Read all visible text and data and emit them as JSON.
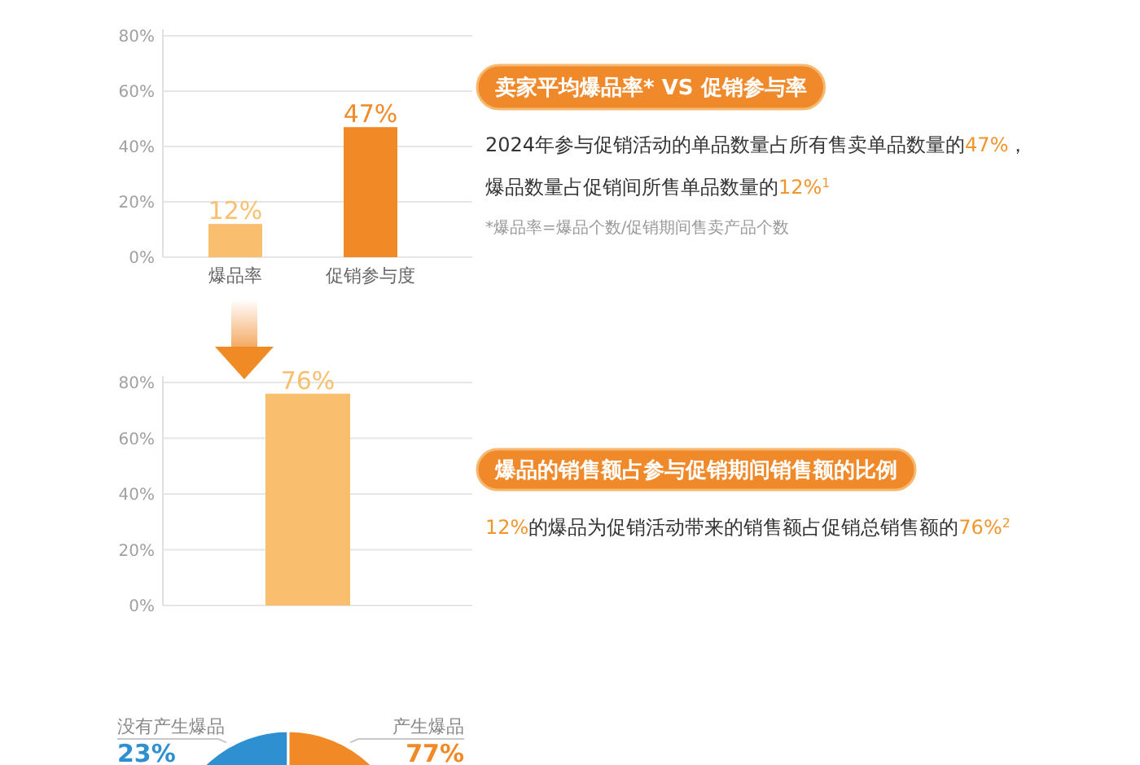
{
  "chart_data": [
    {
      "type": "bar",
      "categories": [
        "爆品率",
        "促销参与度"
      ],
      "values": [
        12,
        47
      ],
      "colors": [
        "#f9be6e",
        "#f18a26"
      ],
      "value_labels": [
        "12%",
        "47%"
      ],
      "ylim": [
        0,
        80
      ],
      "yticks": [
        {
          "value": 0,
          "label": "0%"
        },
        {
          "value": 20,
          "label": "20%"
        },
        {
          "value": 40,
          "label": "40%"
        },
        {
          "value": 60,
          "label": "60%"
        },
        {
          "value": 80,
          "label": "80%"
        }
      ],
      "grid": "y"
    },
    {
      "type": "other",
      "title": "卖家平均爆品率* VS 促销参与率",
      "annotations": [
        "2024年参与促销活动的单品数量占所有售卖单品数量的47%，",
        "爆品数量占促销间所售单品数量的12%$^{1}$",
        "*爆品率=爆品个数/促销期间售卖产品个数"
      ]
    },
    {
      "type": "bar",
      "categories": [
        null
      ],
      "values": [
        76
      ],
      "colors": [
        "#f9be6e"
      ],
      "value_labels": [
        "76%"
      ],
      "ylim": [
        0,
        80
      ],
      "yticks": [
        {
          "value": 0,
          "label": "0%"
        },
        {
          "value": 20,
          "label": "20%"
        },
        {
          "value": 40,
          "label": "40%"
        },
        {
          "value": 60,
          "label": "60%"
        },
        {
          "value": 80,
          "label": "80%"
        }
      ],
      "grid": "y"
    },
    {
      "type": "other",
      "title": "爆品的销售额占参与促销期间销售额的比例",
      "annotations": [
        "12%的爆品为促销活动带来的销售额占促销总销售额的76%$^{2}$"
      ]
    },
    {
      "type": "pie",
      "categories": [
        "没有产生爆品",
        "产生爆品"
      ],
      "values": [
        23,
        77
      ],
      "colors": [
        "#2e8fd1",
        "#f18a26"
      ],
      "value_labels": [
        "23%",
        "77%"
      ]
    }
  ]
}
